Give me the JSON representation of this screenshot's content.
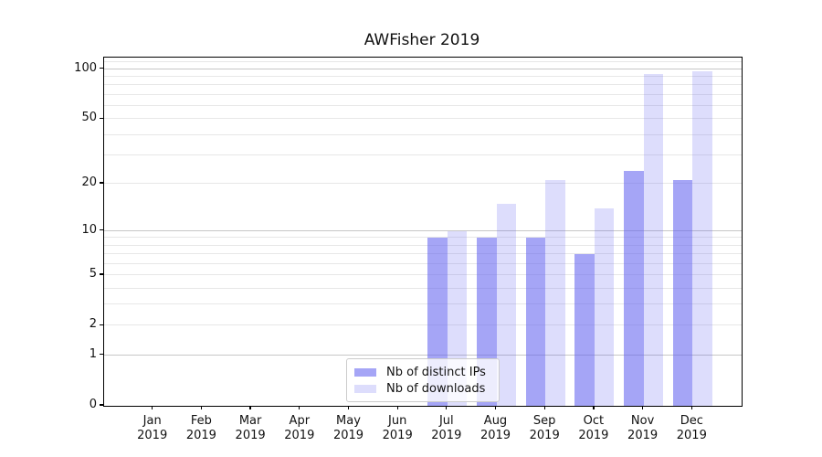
{
  "title": "AWFisher 2019",
  "colors": {
    "ips_color": "rgba(100,100,240,0.58)",
    "downloads_color": "rgba(100,100,240,0.22)",
    "grid_minor": "#e7e7e7",
    "grid_major": "#c6c6c6",
    "axis": "#000000",
    "legend_border": "#cccccc"
  },
  "chart_data": {
    "type": "bar",
    "title": "AWFisher 2019",
    "categories": [
      "Jan",
      "Feb",
      "Mar",
      "Apr",
      "May",
      "Jun",
      "Jul",
      "Aug",
      "Sep",
      "Oct",
      "Nov",
      "Dec"
    ],
    "x_tick_year": "2019",
    "series": [
      {
        "name": "Nb of distinct IPs",
        "values": [
          0,
          0,
          0,
          0,
          0,
          0,
          9,
          9,
          9,
          7,
          24,
          21
        ]
      },
      {
        "name": "Nb of downloads",
        "values": [
          0,
          0,
          0,
          0,
          0,
          0,
          10,
          15,
          21,
          14,
          93,
          97
        ]
      }
    ],
    "y_scale": "log1p",
    "y_ticks": [
      0,
      1,
      2,
      5,
      10,
      20,
      50,
      100
    ],
    "y_major_gridlines": [
      1,
      10,
      100
    ],
    "y_minor_gridlines": [
      2,
      3,
      4,
      5,
      6,
      7,
      8,
      9,
      20,
      30,
      40,
      50,
      60,
      70,
      80,
      90,
      110
    ],
    "y_max": 119,
    "xlabel": "",
    "ylabel": "",
    "legend_position": "lower center",
    "grid": true
  },
  "legend": {
    "items": [
      {
        "label": "Nb of distinct IPs"
      },
      {
        "label": "Nb of downloads"
      }
    ]
  }
}
